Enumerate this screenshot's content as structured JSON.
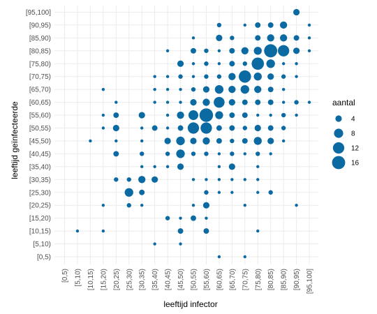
{
  "chart_data": {
    "type": "scatter",
    "subtype": "bubble",
    "title": "",
    "xlabel": "leeftijd infector",
    "ylabel": "leeftijd geïnfecteerde",
    "categories": [
      "[0,5)",
      "[5,10)",
      "[10,15)",
      "[15,20)",
      "[20,25)",
      "[25,30)",
      "[30,35)",
      "[35,40)",
      "[40,45)",
      "[45,50)",
      "[50,55)",
      "[55,60)",
      "[60,65)",
      "[65,70)",
      "[70,75)",
      "[75,80)",
      "[80,85)",
      "[85,90)",
      "[90,95)",
      "[95,100]"
    ],
    "grid": true,
    "legend": {
      "title": "aantal",
      "position": "right",
      "sizes": [
        4,
        8,
        12,
        16
      ]
    },
    "size_range": [
      1,
      18
    ],
    "color": "#0b6aa2",
    "points": [
      {
        "x": "[90,95)",
        "y": "[95,100]",
        "size": 4
      },
      {
        "x": "[60,65)",
        "y": "[90,95)",
        "size": 2
      },
      {
        "x": "[70,75)",
        "y": "[90,95)",
        "size": 1
      },
      {
        "x": "[75,80)",
        "y": "[90,95)",
        "size": 3
      },
      {
        "x": "[80,85)",
        "y": "[90,95)",
        "size": 3
      },
      {
        "x": "[85,90)",
        "y": "[90,95)",
        "size": 5
      },
      {
        "x": "[95,100]",
        "y": "[90,95)",
        "size": 1
      },
      {
        "x": "[50,55)",
        "y": "[85,90)",
        "size": 1
      },
      {
        "x": "[60,65)",
        "y": "[85,90)",
        "size": 4
      },
      {
        "x": "[65,70)",
        "y": "[85,90)",
        "size": 2
      },
      {
        "x": "[75,80)",
        "y": "[85,90)",
        "size": 3
      },
      {
        "x": "[80,85)",
        "y": "[85,90)",
        "size": 5
      },
      {
        "x": "[85,90)",
        "y": "[85,90)",
        "size": 5
      },
      {
        "x": "[90,95)",
        "y": "[85,90)",
        "size": 3
      },
      {
        "x": "[95,100]",
        "y": "[85,90)",
        "size": 1
      },
      {
        "x": "[40,45)",
        "y": "[80,85)",
        "size": 1
      },
      {
        "x": "[50,55)",
        "y": "[80,85)",
        "size": 3
      },
      {
        "x": "[55,60)",
        "y": "[80,85)",
        "size": 2
      },
      {
        "x": "[60,65)",
        "y": "[80,85)",
        "size": 1
      },
      {
        "x": "[65,70)",
        "y": "[80,85)",
        "size": 3
      },
      {
        "x": "[70,75)",
        "y": "[80,85)",
        "size": 5
      },
      {
        "x": "[75,80)",
        "y": "[80,85)",
        "size": 6
      },
      {
        "x": "[80,85)",
        "y": "[80,85)",
        "size": 16
      },
      {
        "x": "[85,90)",
        "y": "[80,85)",
        "size": 12
      },
      {
        "x": "[90,95)",
        "y": "[80,85)",
        "size": 4
      },
      {
        "x": "[95,100]",
        "y": "[80,85)",
        "size": 1
      },
      {
        "x": "[45,50)",
        "y": "[75,80)",
        "size": 4
      },
      {
        "x": "[50,55)",
        "y": "[75,80)",
        "size": 1
      },
      {
        "x": "[55,60)",
        "y": "[75,80)",
        "size": 2
      },
      {
        "x": "[60,65)",
        "y": "[75,80)",
        "size": 1
      },
      {
        "x": "[65,70)",
        "y": "[75,80)",
        "size": 3
      },
      {
        "x": "[70,75)",
        "y": "[75,80)",
        "size": 2
      },
      {
        "x": "[75,80)",
        "y": "[75,80)",
        "size": 14
      },
      {
        "x": "[80,85)",
        "y": "[75,80)",
        "size": 7
      },
      {
        "x": "[85,90)",
        "y": "[75,80)",
        "size": 1
      },
      {
        "x": "[90,95)",
        "y": "[75,80)",
        "size": 1
      },
      {
        "x": "[35,40)",
        "y": "[70,75)",
        "size": 1
      },
      {
        "x": "[40,45)",
        "y": "[70,75)",
        "size": 1
      },
      {
        "x": "[45,50)",
        "y": "[70,75)",
        "size": 2
      },
      {
        "x": "[50,55)",
        "y": "[70,75)",
        "size": 1
      },
      {
        "x": "[55,60)",
        "y": "[70,75)",
        "size": 2
      },
      {
        "x": "[60,65)",
        "y": "[70,75)",
        "size": 2
      },
      {
        "x": "[65,70)",
        "y": "[70,75)",
        "size": 5
      },
      {
        "x": "[70,75)",
        "y": "[70,75)",
        "size": 14
      },
      {
        "x": "[75,80)",
        "y": "[70,75)",
        "size": 6
      },
      {
        "x": "[80,85)",
        "y": "[70,75)",
        "size": 4
      },
      {
        "x": "[85,90)",
        "y": "[70,75)",
        "size": 2
      },
      {
        "x": "[90,95)",
        "y": "[70,75)",
        "size": 1
      },
      {
        "x": "[15,20)",
        "y": "[65,70)",
        "size": 1
      },
      {
        "x": "[35,40)",
        "y": "[65,70)",
        "size": 1
      },
      {
        "x": "[40,45)",
        "y": "[65,70)",
        "size": 1
      },
      {
        "x": "[45,50)",
        "y": "[65,70)",
        "size": 1
      },
      {
        "x": "[50,55)",
        "y": "[65,70)",
        "size": 2
      },
      {
        "x": "[55,60)",
        "y": "[65,70)",
        "size": 4
      },
      {
        "x": "[60,65)",
        "y": "[65,70)",
        "size": 7
      },
      {
        "x": "[65,70)",
        "y": "[65,70)",
        "size": 5
      },
      {
        "x": "[70,75)",
        "y": "[65,70)",
        "size": 7
      },
      {
        "x": "[75,80)",
        "y": "[65,70)",
        "size": 5
      },
      {
        "x": "[80,85)",
        "y": "[65,70)",
        "size": 3
      },
      {
        "x": "[85,90)",
        "y": "[65,70)",
        "size": 1
      },
      {
        "x": "[20,25)",
        "y": "[60,65)",
        "size": 1
      },
      {
        "x": "[35,40)",
        "y": "[60,65)",
        "size": 1
      },
      {
        "x": "[40,45)",
        "y": "[60,65)",
        "size": 1
      },
      {
        "x": "[45,50)",
        "y": "[60,65)",
        "size": 1
      },
      {
        "x": "[50,55)",
        "y": "[60,65)",
        "size": 4
      },
      {
        "x": "[55,60)",
        "y": "[60,65)",
        "size": 5
      },
      {
        "x": "[60,65)",
        "y": "[60,65)",
        "size": 11
      },
      {
        "x": "[65,70)",
        "y": "[60,65)",
        "size": 4
      },
      {
        "x": "[70,75)",
        "y": "[60,65)",
        "size": 3
      },
      {
        "x": "[75,80)",
        "y": "[60,65)",
        "size": 3
      },
      {
        "x": "[80,85)",
        "y": "[60,65)",
        "size": 3
      },
      {
        "x": "[85,90)",
        "y": "[60,65)",
        "size": 1
      },
      {
        "x": "[90,95)",
        "y": "[60,65)",
        "size": 2
      },
      {
        "x": "[95,100]",
        "y": "[60,65)",
        "size": 1
      },
      {
        "x": "[15,20)",
        "y": "[55,60)",
        "size": 1
      },
      {
        "x": "[20,25)",
        "y": "[55,60)",
        "size": 3
      },
      {
        "x": "[30,35)",
        "y": "[55,60)",
        "size": 4
      },
      {
        "x": "[40,45)",
        "y": "[55,60)",
        "size": 1
      },
      {
        "x": "[45,50)",
        "y": "[55,60)",
        "size": 5
      },
      {
        "x": "[50,55)",
        "y": "[55,60)",
        "size": 9
      },
      {
        "x": "[55,60)",
        "y": "[55,60)",
        "size": 17
      },
      {
        "x": "[60,65)",
        "y": "[55,60)",
        "size": 6
      },
      {
        "x": "[65,70)",
        "y": "[55,60)",
        "size": 3
      },
      {
        "x": "[70,75)",
        "y": "[55,60)",
        "size": 3
      },
      {
        "x": "[75,80)",
        "y": "[55,60)",
        "size": 1
      },
      {
        "x": "[80,85)",
        "y": "[55,60)",
        "size": 1
      },
      {
        "x": "[85,90)",
        "y": "[55,60)",
        "size": 2
      },
      {
        "x": "[90,95)",
        "y": "[55,60)",
        "size": 1
      },
      {
        "x": "[15,20)",
        "y": "[50,55)",
        "size": 1
      },
      {
        "x": "[20,25)",
        "y": "[50,55)",
        "size": 4
      },
      {
        "x": "[30,35)",
        "y": "[50,55)",
        "size": 1
      },
      {
        "x": "[35,40)",
        "y": "[50,55)",
        "size": 3
      },
      {
        "x": "[40,45)",
        "y": "[50,55)",
        "size": 1
      },
      {
        "x": "[45,50)",
        "y": "[50,55)",
        "size": 3
      },
      {
        "x": "[50,55)",
        "y": "[50,55)",
        "size": 12
      },
      {
        "x": "[55,60)",
        "y": "[50,55)",
        "size": 12
      },
      {
        "x": "[60,65)",
        "y": "[50,55)",
        "size": 3
      },
      {
        "x": "[65,70)",
        "y": "[50,55)",
        "size": 3
      },
      {
        "x": "[70,75)",
        "y": "[50,55)",
        "size": 2
      },
      {
        "x": "[75,80)",
        "y": "[50,55)",
        "size": 4
      },
      {
        "x": "[80,85)",
        "y": "[50,55)",
        "size": 3
      },
      {
        "x": "[85,90)",
        "y": "[50,55)",
        "size": 2
      },
      {
        "x": "[10,15)",
        "y": "[45,50)",
        "size": 1
      },
      {
        "x": "[20,25)",
        "y": "[45,50)",
        "size": 1
      },
      {
        "x": "[30,35)",
        "y": "[45,50)",
        "size": 1
      },
      {
        "x": "[40,45)",
        "y": "[45,50)",
        "size": 4
      },
      {
        "x": "[45,50)",
        "y": "[45,50)",
        "size": 7
      },
      {
        "x": "[50,55)",
        "y": "[45,50)",
        "size": 4
      },
      {
        "x": "[55,60)",
        "y": "[45,50)",
        "size": 5
      },
      {
        "x": "[60,65)",
        "y": "[45,50)",
        "size": 3
      },
      {
        "x": "[65,70)",
        "y": "[45,50)",
        "size": 2
      },
      {
        "x": "[70,75)",
        "y": "[45,50)",
        "size": 3
      },
      {
        "x": "[75,80)",
        "y": "[45,50)",
        "size": 6
      },
      {
        "x": "[80,85)",
        "y": "[45,50)",
        "size": 4
      },
      {
        "x": "[85,90)",
        "y": "[45,50)",
        "size": 1
      },
      {
        "x": "[20,25)",
        "y": "[40,45)",
        "size": 3
      },
      {
        "x": "[30,35)",
        "y": "[40,45)",
        "size": 2
      },
      {
        "x": "[40,45)",
        "y": "[40,45)",
        "size": 2
      },
      {
        "x": "[45,50)",
        "y": "[40,45)",
        "size": 7
      },
      {
        "x": "[50,55)",
        "y": "[40,45)",
        "size": 2
      },
      {
        "x": "[55,60)",
        "y": "[40,45)",
        "size": 2
      },
      {
        "x": "[60,65)",
        "y": "[40,45)",
        "size": 1
      },
      {
        "x": "[65,70)",
        "y": "[40,45)",
        "size": 2
      },
      {
        "x": "[70,75)",
        "y": "[40,45)",
        "size": 1
      },
      {
        "x": "[75,80)",
        "y": "[40,45)",
        "size": 2
      },
      {
        "x": "[80,85)",
        "y": "[40,45)",
        "size": 1
      },
      {
        "x": "[30,35)",
        "y": "[35,40)",
        "size": 1
      },
      {
        "x": "[35,40)",
        "y": "[35,40)",
        "size": 1
      },
      {
        "x": "[40,45)",
        "y": "[35,40)",
        "size": 1
      },
      {
        "x": "[45,50)",
        "y": "[35,40)",
        "size": 4
      },
      {
        "x": "[60,65)",
        "y": "[35,40)",
        "size": 1
      },
      {
        "x": "[65,70)",
        "y": "[35,40)",
        "size": 4
      },
      {
        "x": "[75,80)",
        "y": "[35,40)",
        "size": 1
      },
      {
        "x": "[20,25)",
        "y": "[30,35)",
        "size": 2
      },
      {
        "x": "[25,30)",
        "y": "[30,35)",
        "size": 2
      },
      {
        "x": "[30,35)",
        "y": "[30,35)",
        "size": 5
      },
      {
        "x": "[35,40)",
        "y": "[30,35)",
        "size": 4
      },
      {
        "x": "[50,55)",
        "y": "[30,35)",
        "size": 1
      },
      {
        "x": "[55,60)",
        "y": "[30,35)",
        "size": 1
      },
      {
        "x": "[60,65)",
        "y": "[30,35)",
        "size": 1
      },
      {
        "x": "[65,70)",
        "y": "[30,35)",
        "size": 1
      },
      {
        "x": "[70,75)",
        "y": "[30,35)",
        "size": 1
      },
      {
        "x": "[75,80)",
        "y": "[30,35)",
        "size": 1
      },
      {
        "x": "[25,30)",
        "y": "[25,30)",
        "size": 7
      },
      {
        "x": "[30,35)",
        "y": "[25,30)",
        "size": 3
      },
      {
        "x": "[55,60)",
        "y": "[25,30)",
        "size": 2
      },
      {
        "x": "[60,65)",
        "y": "[25,30)",
        "size": 1
      },
      {
        "x": "[65,70)",
        "y": "[25,30)",
        "size": 1
      },
      {
        "x": "[75,80)",
        "y": "[25,30)",
        "size": 1
      },
      {
        "x": "[80,85)",
        "y": "[25,30)",
        "size": 2
      },
      {
        "x": "[15,20)",
        "y": "[20,25)",
        "size": 1
      },
      {
        "x": "[25,30)",
        "y": "[20,25)",
        "size": 2
      },
      {
        "x": "[30,35)",
        "y": "[20,25)",
        "size": 1
      },
      {
        "x": "[50,55)",
        "y": "[20,25)",
        "size": 1
      },
      {
        "x": "[55,60)",
        "y": "[20,25)",
        "size": 4
      },
      {
        "x": "[70,75)",
        "y": "[20,25)",
        "size": 1
      },
      {
        "x": "[90,95)",
        "y": "[20,25)",
        "size": 1
      },
      {
        "x": "[40,45)",
        "y": "[15,20)",
        "size": 2
      },
      {
        "x": "[45,50)",
        "y": "[15,20)",
        "size": 1
      },
      {
        "x": "[50,55)",
        "y": "[15,20)",
        "size": 3
      },
      {
        "x": "[55,60)",
        "y": "[15,20)",
        "size": 1
      },
      {
        "x": "[5,10)",
        "y": "[10,15)",
        "size": 1
      },
      {
        "x": "[15,20)",
        "y": "[10,15)",
        "size": 1
      },
      {
        "x": "[45,50)",
        "y": "[10,15)",
        "size": 3
      },
      {
        "x": "[55,60)",
        "y": "[10,15)",
        "size": 3
      },
      {
        "x": "[75,80)",
        "y": "[10,15)",
        "size": 1
      },
      {
        "x": "[35,40)",
        "y": "[5,10)",
        "size": 1
      },
      {
        "x": "[45,50)",
        "y": "[5,10)",
        "size": 1
      },
      {
        "x": "[60,65)",
        "y": "[0,5)",
        "size": 1
      },
      {
        "x": "[70,75)",
        "y": "[0,5)",
        "size": 1
      }
    ]
  }
}
